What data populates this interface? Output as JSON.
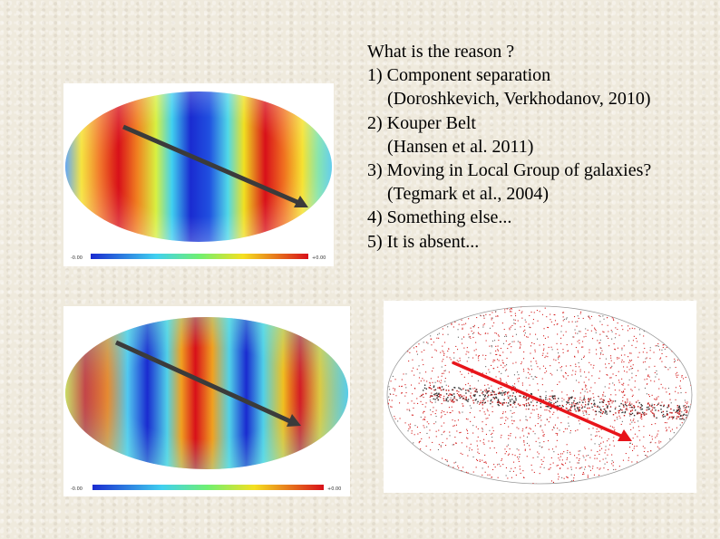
{
  "text": {
    "title": "What is the reason ?",
    "item1": "1) Component separation",
    "item1_ref": "(Doroshkevich, Verkhodanov, 2010)",
    "item2": "2) Kouper Belt",
    "item2_ref": "(Hansen et al. 2011)",
    "item3": "3) Moving in Local Group of galaxies?",
    "item3_ref": "(Tegmark et al., 2004)",
    "item4": "4) Something else...",
    "item5": "5) It is absent..."
  },
  "map1": {
    "scale_min": "-0.00",
    "scale_max": "+0.00"
  },
  "map2": {
    "scale_min": "-0.00",
    "scale_max": "+0.00"
  },
  "colors": {
    "arrow_dark": "#3b3b3b",
    "arrow_red": "#e8141a",
    "map_red": "#d8101a",
    "map_blue": "#1a2bd0",
    "map_cyan": "#4fd8e8",
    "map_yellow": "#f5e81a",
    "background": "#efeadd"
  }
}
